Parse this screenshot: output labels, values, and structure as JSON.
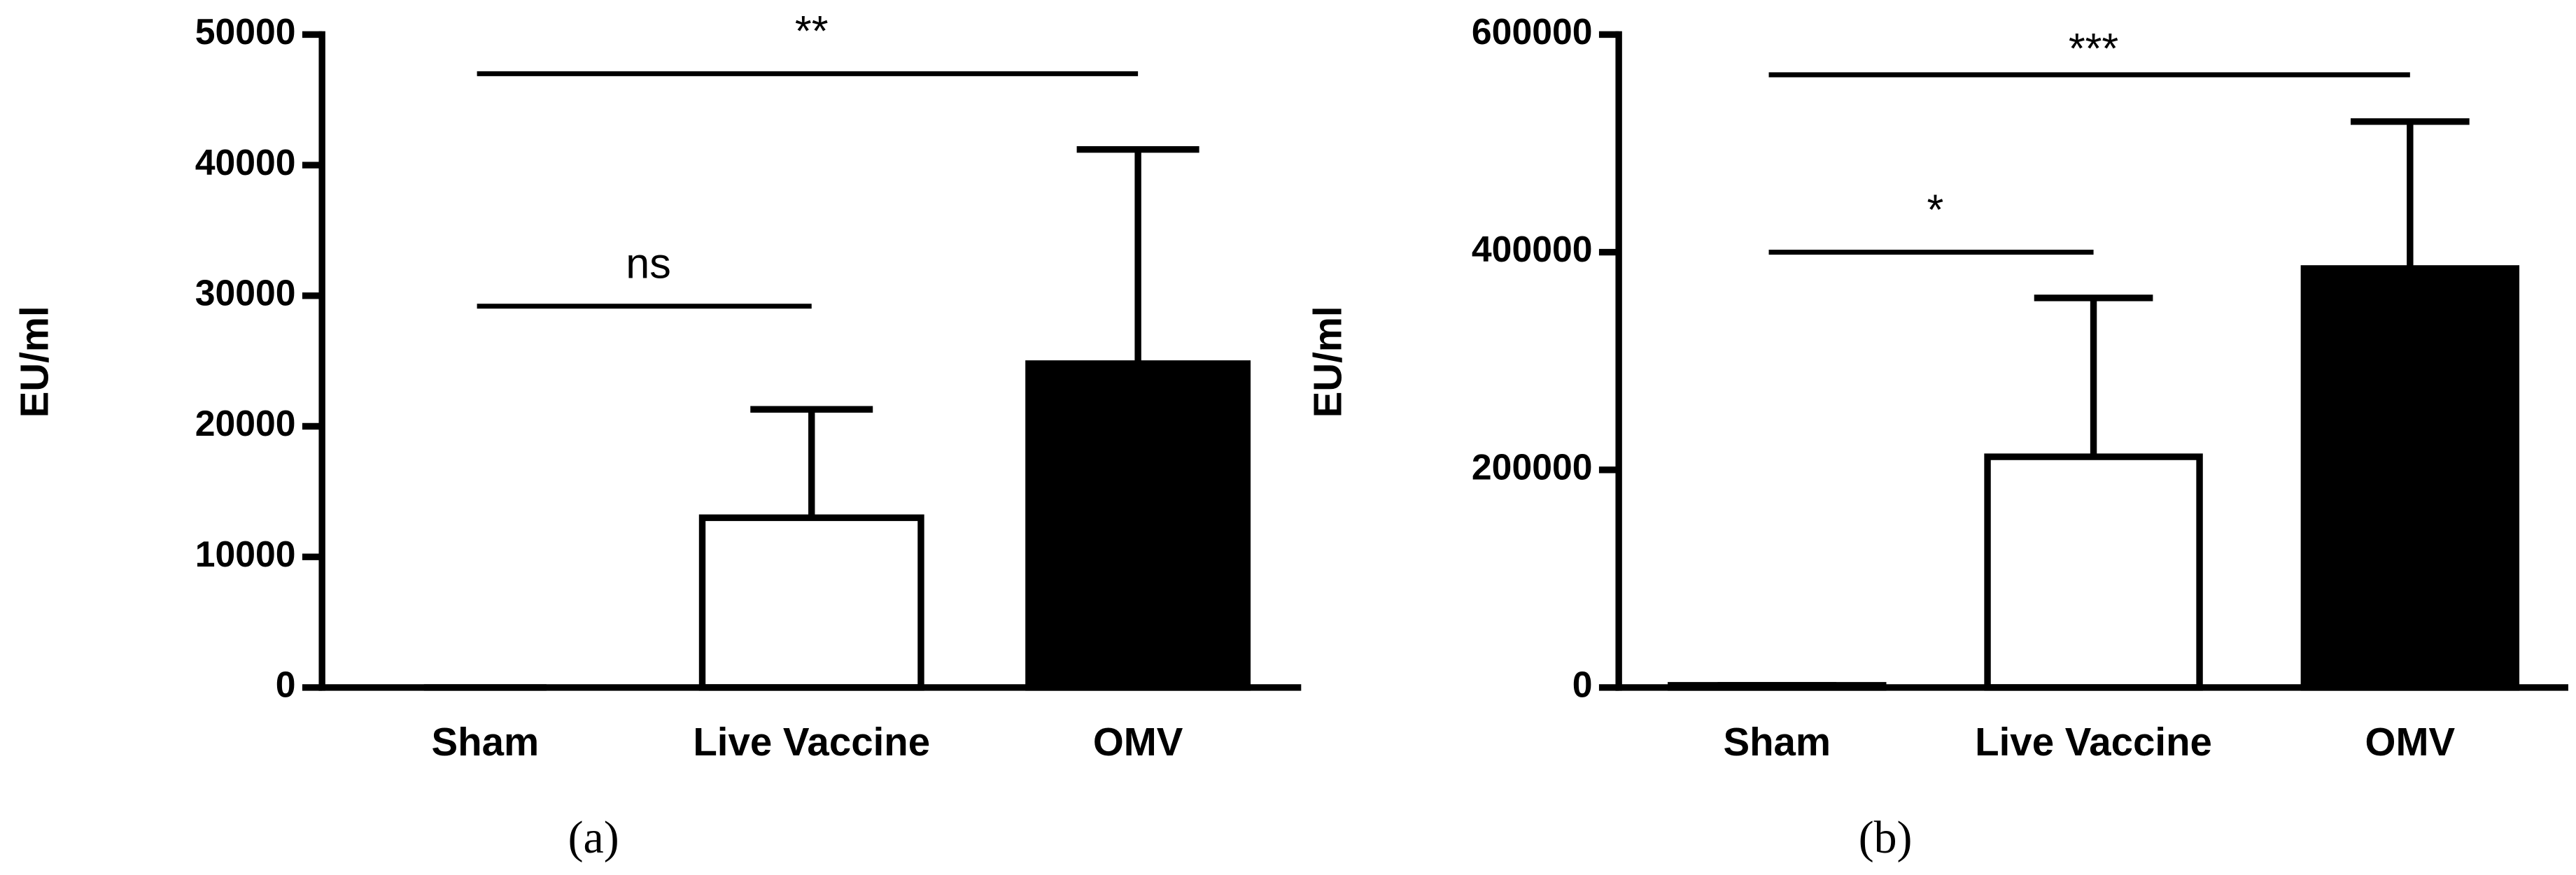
{
  "chart_data": [
    {
      "type": "bar",
      "panel": "(a)",
      "y_label": "EU/ml",
      "categories": [
        "Sham",
        "Live Vaccine",
        "OMV"
      ],
      "values": [
        0,
        13000,
        24800
      ],
      "errors": [
        0,
        8300,
        16400
      ],
      "colors": [
        "#ffffff",
        "#ffffff",
        "#000000"
      ],
      "ylim": [
        0,
        50000
      ],
      "yticks": [
        0,
        10000,
        20000,
        30000,
        40000,
        50000
      ],
      "comparisons": [
        {
          "between": [
            "Sham",
            "Live Vaccine"
          ],
          "y": 29200,
          "label": "ns"
        },
        {
          "between": [
            "Sham",
            "OMV"
          ],
          "y": 47000,
          "label": "**"
        }
      ]
    },
    {
      "type": "bar",
      "panel": "(b)",
      "y_label": "EU/ml",
      "categories": [
        "Sham",
        "Live Vaccine",
        "OMV"
      ],
      "values": [
        2000,
        212000,
        385000
      ],
      "errors": [
        0,
        146000,
        135000
      ],
      "colors": [
        "#ffffff",
        "#ffffff",
        "#000000"
      ],
      "ylim": [
        0,
        600000
      ],
      "yticks": [
        0,
        200000,
        400000,
        600000
      ],
      "comparisons": [
        {
          "between": [
            "Sham",
            "Live Vaccine"
          ],
          "y": 400000,
          "label": "*"
        },
        {
          "between": [
            "Sham",
            "OMV"
          ],
          "y": 563000,
          "label": "***"
        }
      ]
    }
  ]
}
